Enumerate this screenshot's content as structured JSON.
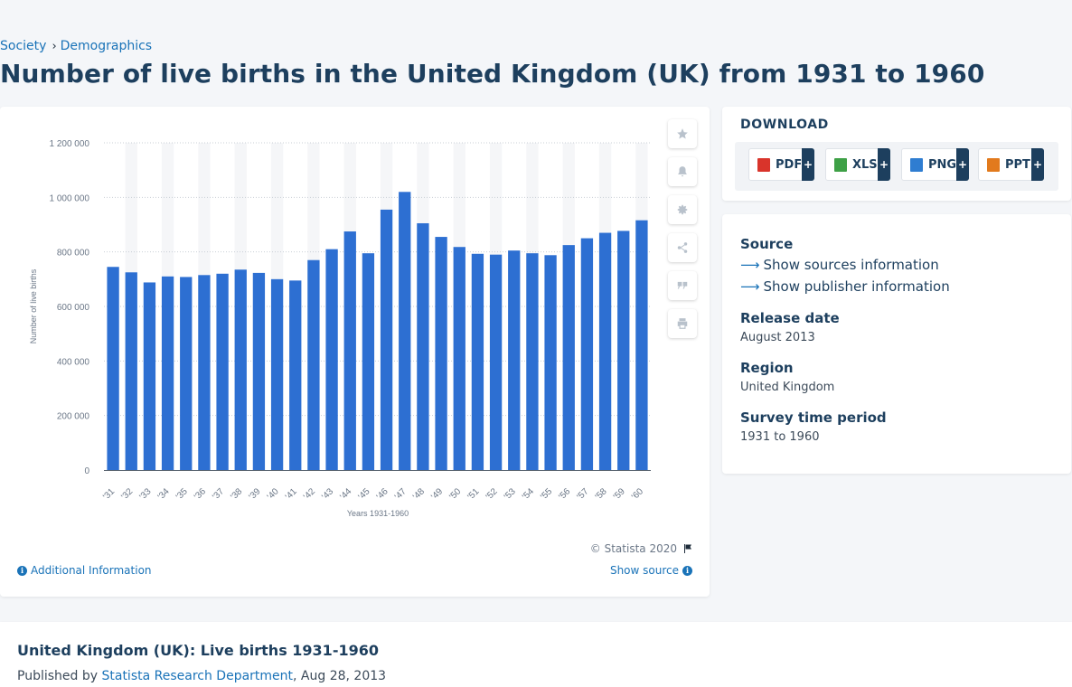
{
  "breadcrumb": {
    "items": [
      "Society",
      "Demographics"
    ],
    "separator": "›"
  },
  "title": "Number of live births in the United Kingdom (UK) from 1931 to 1960",
  "tools": [
    "star-icon",
    "bell-icon",
    "gear-icon",
    "share-icon",
    "quote-icon",
    "print-icon"
  ],
  "chart_footer": {
    "copyright": "© Statista 2020",
    "additional_info": "Additional Information",
    "show_source": "Show source"
  },
  "download": {
    "title": "DOWNLOAD",
    "buttons": [
      {
        "label": "PDF",
        "color": "#d9342b"
      },
      {
        "label": "XLS",
        "color": "#3ea046"
      },
      {
        "label": "PNG",
        "color": "#2f7dd1"
      },
      {
        "label": "PPT",
        "color": "#e27a1d"
      }
    ],
    "plus": "+"
  },
  "info": {
    "source_label": "Source",
    "show_sources": "Show sources information",
    "show_publisher": "Show publisher information",
    "release_label": "Release date",
    "release_value": "August 2013",
    "region_label": "Region",
    "region_value": "United Kingdom",
    "period_label": "Survey time period",
    "period_value": "1931 to 1960"
  },
  "bottom": {
    "title": "United Kingdom (UK): Live births 1931-1960",
    "published_prefix": "Published by",
    "publisher": "Statista Research Department",
    "date": ", Aug 28, 2013"
  },
  "chart_data": {
    "type": "bar",
    "categories": [
      "'31",
      "'32",
      "'33",
      "'34",
      "'35",
      "'36",
      "'37",
      "'38",
      "'39",
      "'40",
      "'41",
      "'42",
      "'43",
      "'44",
      "'45",
      "'46",
      "'47",
      "'48",
      "'49",
      "'50",
      "'51",
      "'52",
      "'53",
      "'54",
      "'55",
      "'56",
      "'57",
      "'58",
      "'59",
      "'60"
    ],
    "values": [
      745000,
      725000,
      688000,
      710000,
      708000,
      715000,
      720000,
      735000,
      723000,
      700000,
      695000,
      770000,
      810000,
      875000,
      795000,
      955000,
      1020000,
      905000,
      855000,
      818000,
      793000,
      790000,
      805000,
      795000,
      788000,
      825000,
      850000,
      870000,
      877000,
      916000
    ],
    "ylabel": "Number of live births",
    "xlabel": "Years 1931-1960",
    "ylim": [
      0,
      1200000
    ],
    "yticks": [
      "0",
      "200 000",
      "400 000",
      "600 000",
      "800 000",
      "1 000 000",
      "1 200 000"
    ],
    "bar_color": "#2d6fd2",
    "grid": true
  }
}
